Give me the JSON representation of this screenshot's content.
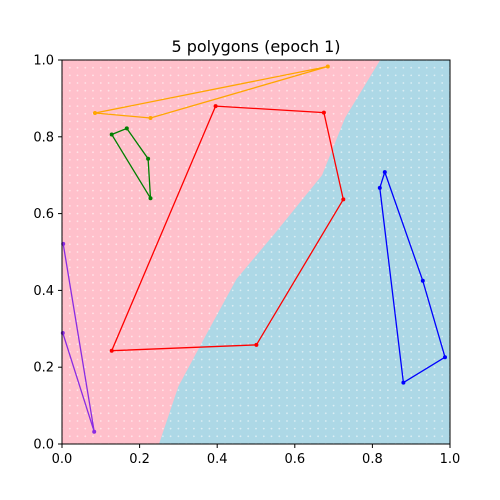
{
  "chart_data": {
    "type": "scatter",
    "title": "5 polygons (epoch  1)",
    "xlabel": "",
    "ylabel": "",
    "xlim": [
      0.0,
      1.0
    ],
    "ylim": [
      0.0,
      1.0
    ],
    "x_ticks": [
      "0.0",
      "0.2",
      "0.4",
      "0.6",
      "0.8",
      "1.0"
    ],
    "y_ticks": [
      "0.0",
      "0.2",
      "0.4",
      "0.6",
      "0.8",
      "1.0"
    ],
    "grid": false,
    "background": {
      "regions": [
        {
          "class": "left",
          "color": "#ffc0cb"
        },
        {
          "class": "right",
          "color": "#add8e6"
        }
      ],
      "boundary": [
        [
          0.25,
          0.0
        ],
        [
          0.3,
          0.15
        ],
        [
          0.38,
          0.3
        ],
        [
          0.45,
          0.43
        ],
        [
          0.55,
          0.55
        ],
        [
          0.67,
          0.7
        ],
        [
          0.73,
          0.85
        ],
        [
          0.82,
          1.0
        ]
      ]
    },
    "series": [
      {
        "color": "#ffa500",
        "closed": true,
        "points": [
          [
            0.085,
            0.862
          ],
          [
            0.685,
            0.983
          ],
          [
            0.228,
            0.849
          ]
        ]
      },
      {
        "color": "#008000",
        "closed": true,
        "points": [
          [
            0.128,
            0.806
          ],
          [
            0.167,
            0.822
          ],
          [
            0.222,
            0.743
          ],
          [
            0.228,
            0.64
          ]
        ]
      },
      {
        "color": "#ff0000",
        "closed": true,
        "points": [
          [
            0.396,
            0.88
          ],
          [
            0.675,
            0.863
          ],
          [
            0.725,
            0.637
          ],
          [
            0.501,
            0.258
          ],
          [
            0.128,
            0.243
          ]
        ]
      },
      {
        "color": "#0000ff",
        "closed": true,
        "points": [
          [
            0.832,
            0.708
          ],
          [
            0.93,
            0.425
          ],
          [
            0.987,
            0.226
          ],
          [
            0.88,
            0.16
          ],
          [
            0.819,
            0.667
          ]
        ]
      },
      {
        "color": "#8a2be2",
        "closed": false,
        "points": [
          [
            0.003,
            0.521
          ],
          [
            0.083,
            0.032
          ],
          [
            0.002,
            0.289
          ]
        ]
      }
    ]
  }
}
